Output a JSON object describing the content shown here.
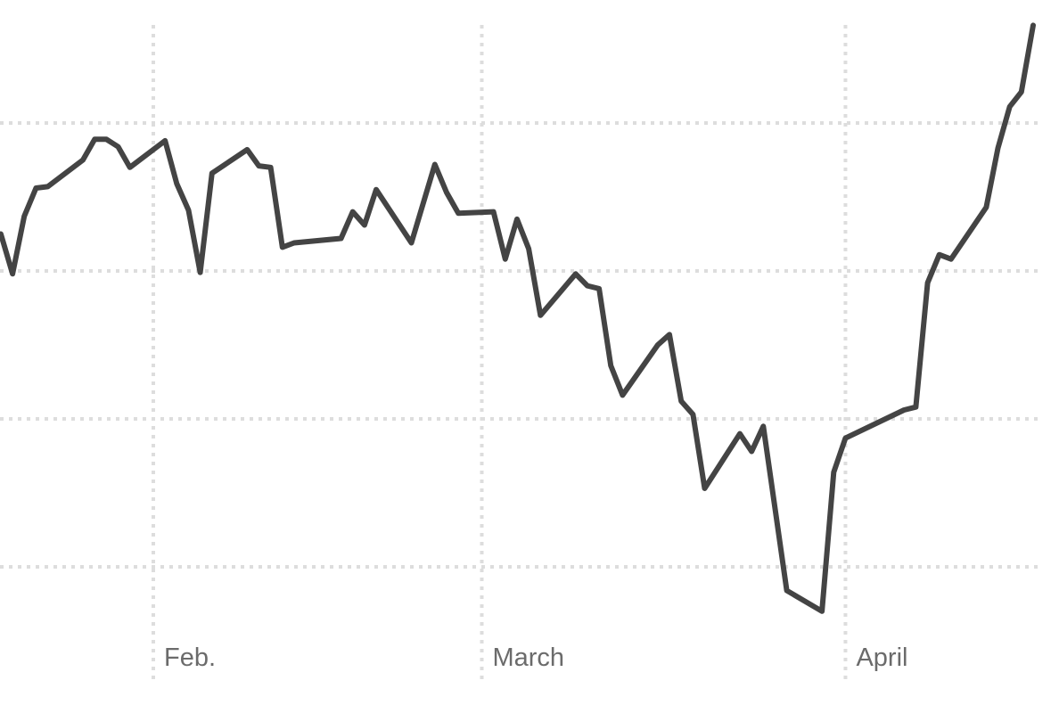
{
  "chart_data": {
    "type": "line",
    "title": "",
    "xlabel": "",
    "ylabel": "",
    "x_tick_labels": [
      {
        "date": "02-01",
        "label": "Feb."
      },
      {
        "date": "03-01",
        "label": "March"
      },
      {
        "date": "04-01",
        "label": "April"
      }
    ],
    "y_gridlines": [
      0,
      1,
      2,
      3
    ],
    "y_tick_labels_shown": false,
    "grid": "dotted",
    "line_color": "#444444",
    "grid_color": "#dddddd",
    "series": [
      {
        "x": [
          "01-19",
          "01-20",
          "01-21",
          "01-22",
          "01-23",
          "01-26",
          "01-27",
          "01-28",
          "01-29",
          "01-30",
          "02-02",
          "02-03",
          "02-04",
          "02-05",
          "02-06",
          "02-09",
          "02-10",
          "02-11",
          "02-12",
          "02-13",
          "02-17",
          "02-18",
          "02-19",
          "02-20",
          "02-23",
          "02-25",
          "02-26",
          "02-27",
          "03-02",
          "03-03",
          "03-04",
          "03-05",
          "03-06",
          "03-09",
          "03-10",
          "03-11",
          "03-12",
          "03-13",
          "03-16",
          "03-17",
          "03-18",
          "03-19",
          "03-20",
          "03-23",
          "03-24",
          "03-25",
          "03-27",
          "03-30",
          "03-31",
          "04-01",
          "04-06",
          "04-07",
          "04-08",
          "04-09",
          "04-10",
          "04-13",
          "04-14",
          "04-15",
          "04-16",
          "04-17"
        ],
        "values": [
          2.25,
          1.98,
          2.37,
          2.56,
          2.57,
          2.75,
          2.89,
          2.89,
          2.84,
          2.7,
          2.88,
          2.59,
          2.41,
          1.99,
          2.66,
          2.82,
          2.71,
          2.7,
          2.16,
          2.19,
          2.22,
          2.4,
          2.31,
          2.55,
          2.19,
          2.72,
          2.53,
          2.39,
          2.4,
          2.08,
          2.35,
          2.15,
          1.7,
          1.98,
          1.9,
          1.88,
          1.36,
          1.16,
          1.5,
          1.57,
          1.12,
          1.03,
          0.53,
          0.9,
          0.78,
          0.95,
          -0.16,
          -0.3,
          0.64,
          0.87,
          1.06,
          1.08,
          1.92,
          2.11,
          2.08,
          2.43,
          2.83,
          3.11,
          3.21,
          3.66
        ]
      }
    ]
  }
}
